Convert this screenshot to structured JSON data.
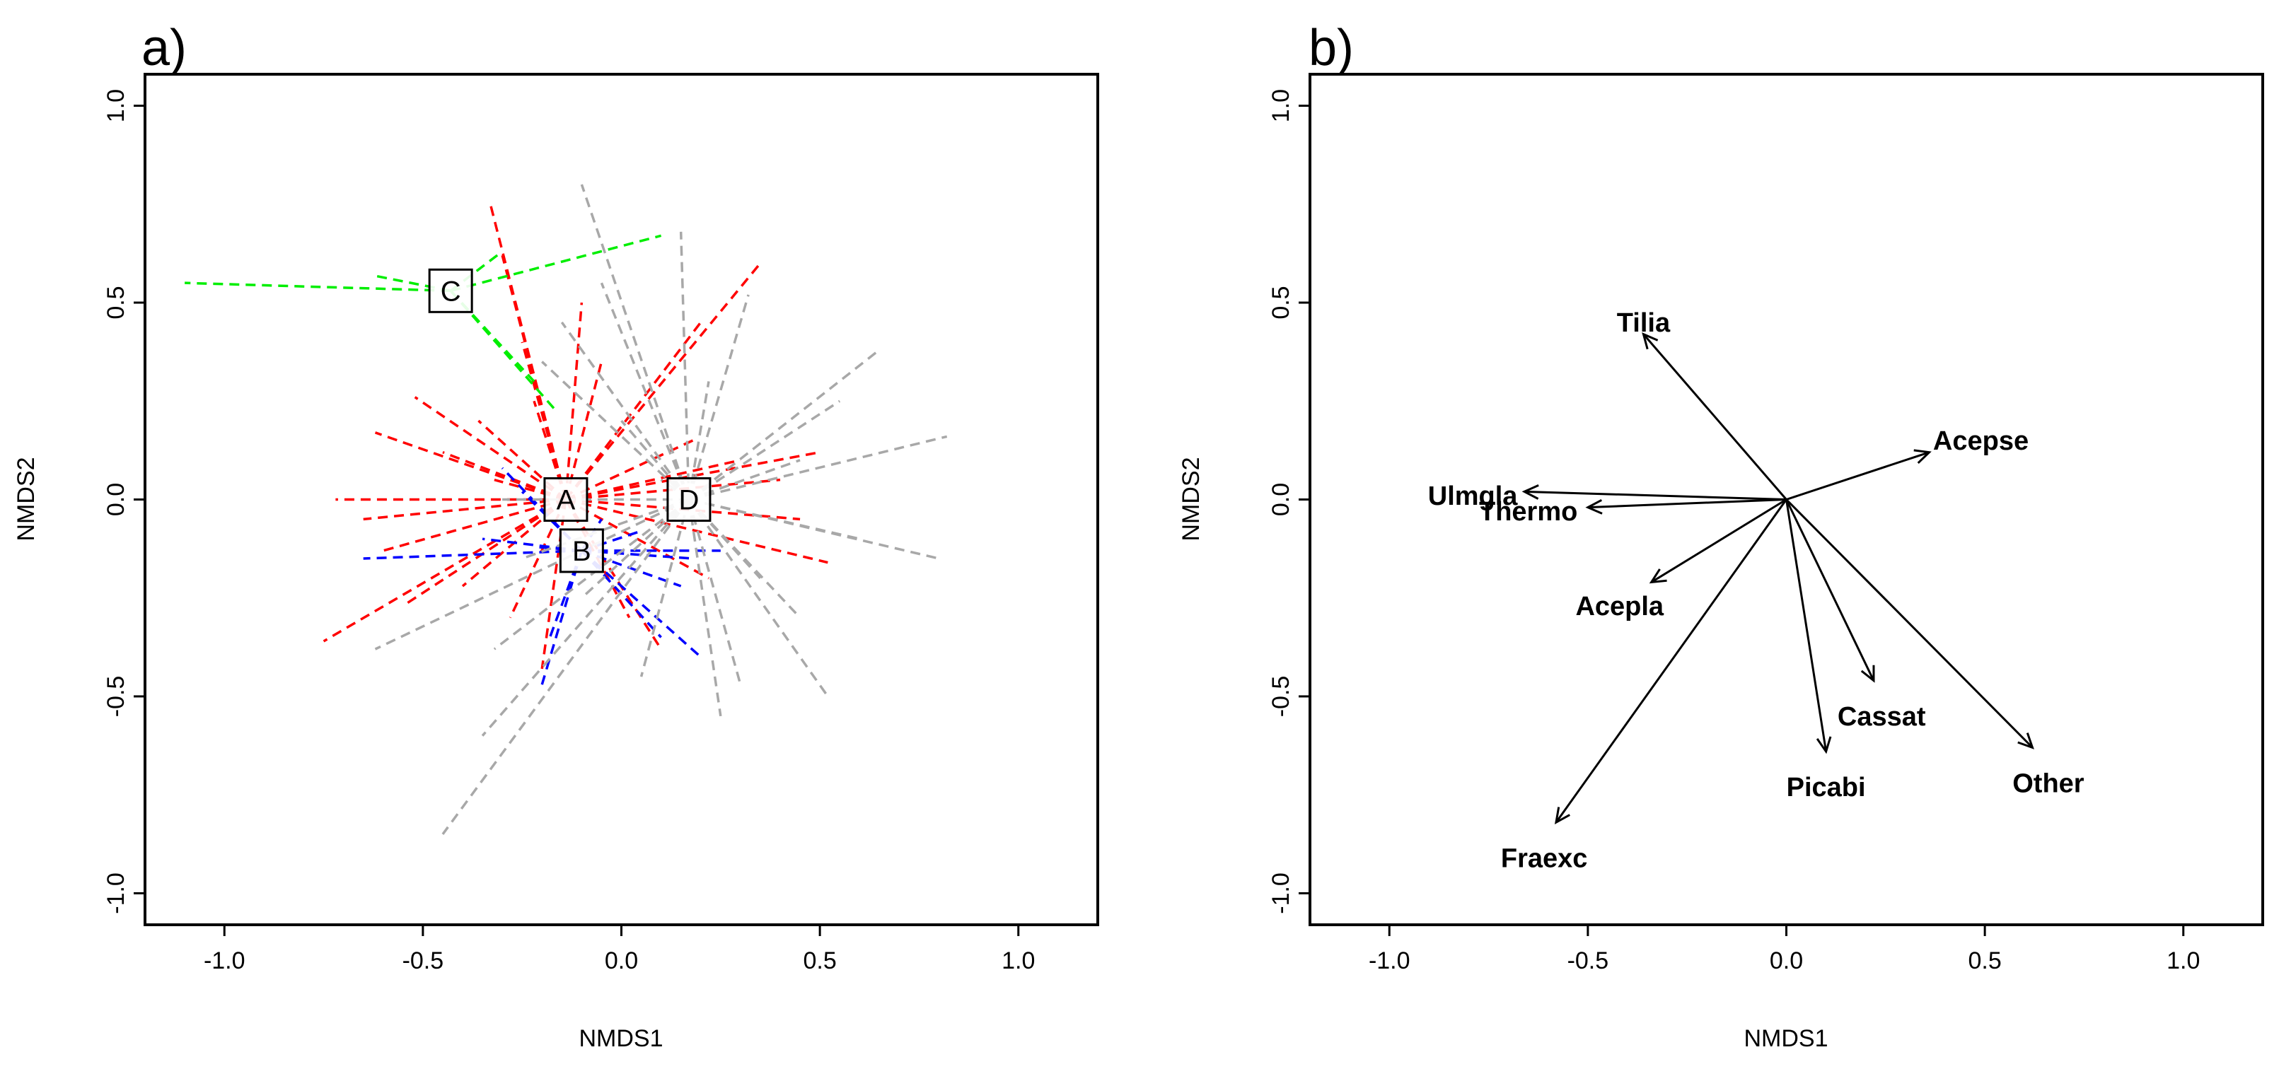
{
  "chart_data": [
    {
      "panel": "a)",
      "type": "scatter",
      "xlabel": "NMDS1",
      "ylabel": "NMDS2",
      "xlim": [
        -1.2,
        1.2
      ],
      "ylim": [
        -1.08,
        1.08
      ],
      "xticks": [
        -1.0,
        -0.5,
        0.0,
        0.5,
        1.0
      ],
      "xtick_labels": [
        "-1.0",
        "-0.5",
        "0.0",
        "0.5",
        "1.0"
      ],
      "yticks": [
        -1.0,
        -0.5,
        0.0,
        0.5,
        1.0
      ],
      "ytick_labels": [
        "-1.0",
        "-0.5",
        "0.0",
        "0.5",
        "1.0"
      ],
      "groups": [
        {
          "label": "A",
          "color": "#ff0000",
          "centroid": [
            -0.14,
            0.0
          ],
          "spokes": [
            [
              -0.62,
              0.17
            ],
            [
              -0.72,
              0.0
            ],
            [
              -0.65,
              -0.05
            ],
            [
              -0.75,
              -0.36
            ],
            [
              -0.55,
              -0.27
            ],
            [
              -0.52,
              0.26
            ],
            [
              -0.45,
              0.12
            ],
            [
              -0.6,
              -0.13
            ],
            [
              -0.4,
              -0.22
            ],
            [
              -0.33,
              0.75
            ],
            [
              -0.3,
              0.62
            ],
            [
              -0.25,
              0.4
            ],
            [
              -0.28,
              -0.3
            ],
            [
              -0.2,
              -0.43
            ],
            [
              -0.1,
              0.5
            ],
            [
              -0.05,
              0.35
            ],
            [
              0.02,
              -0.3
            ],
            [
              0.1,
              -0.38
            ],
            [
              0.2,
              0.45
            ],
            [
              0.22,
              -0.2
            ],
            [
              0.35,
              0.6
            ],
            [
              0.3,
              0.1
            ],
            [
              0.4,
              0.05
            ],
            [
              0.5,
              0.12
            ],
            [
              0.52,
              -0.16
            ],
            [
              0.45,
              -0.05
            ],
            [
              0.18,
              0.15
            ],
            [
              -0.32,
              0.05
            ],
            [
              -0.36,
              0.2
            ],
            [
              -0.22,
              0.25
            ]
          ]
        },
        {
          "label": "B",
          "color": "#0000ff",
          "centroid": [
            -0.1,
            -0.13
          ],
          "spokes": [
            [
              -0.65,
              -0.15
            ],
            [
              -0.3,
              0.08
            ],
            [
              -0.35,
              -0.1
            ],
            [
              -0.25,
              0.02
            ],
            [
              -0.2,
              -0.47
            ],
            [
              -0.18,
              -0.35
            ],
            [
              0.1,
              -0.35
            ],
            [
              0.2,
              -0.4
            ],
            [
              0.15,
              -0.22
            ],
            [
              0.05,
              -0.08
            ],
            [
              0.25,
              -0.13
            ],
            [
              0.18,
              -0.15
            ],
            [
              -0.05,
              -0.05
            ],
            [
              -0.22,
              -0.12
            ]
          ]
        },
        {
          "label": "C",
          "color": "#00ee00",
          "centroid": [
            -0.43,
            0.53
          ],
          "spokes": [
            [
              -1.1,
              0.55
            ],
            [
              -0.63,
              0.57
            ],
            [
              -0.3,
              0.63
            ],
            [
              0.1,
              0.67
            ],
            [
              -0.16,
              0.22
            ],
            [
              -0.22,
              0.3
            ]
          ]
        },
        {
          "label": "D",
          "color": "#a8a8a8",
          "centroid": [
            0.17,
            0.0
          ],
          "spokes": [
            [
              -0.1,
              0.8
            ],
            [
              0.15,
              0.68
            ],
            [
              0.32,
              0.52
            ],
            [
              0.65,
              0.38
            ],
            [
              0.82,
              0.16
            ],
            [
              0.8,
              -0.15
            ],
            [
              0.52,
              -0.5
            ],
            [
              0.3,
              -0.47
            ],
            [
              -0.45,
              -0.85
            ],
            [
              -0.62,
              -0.38
            ],
            [
              -0.32,
              -0.38
            ],
            [
              -0.2,
              0.35
            ],
            [
              -0.05,
              0.55
            ],
            [
              0.05,
              -0.45
            ],
            [
              0.22,
              0.3
            ],
            [
              0.45,
              0.1
            ],
            [
              0.6,
              -0.1
            ],
            [
              0.45,
              -0.3
            ],
            [
              -0.3,
              0.0
            ],
            [
              -0.25,
              -0.15
            ],
            [
              0.0,
              0.2
            ],
            [
              0.1,
              0.05
            ],
            [
              -0.1,
              -0.25
            ],
            [
              0.35,
              -0.2
            ],
            [
              0.55,
              0.25
            ],
            [
              -0.15,
              0.45
            ],
            [
              0.25,
              -0.55
            ],
            [
              -0.35,
              -0.6
            ]
          ]
        }
      ]
    },
    {
      "panel": "b)",
      "type": "biplot",
      "xlabel": "NMDS1",
      "ylabel": "NMDS2",
      "xlim": [
        -1.2,
        1.2
      ],
      "ylim": [
        -1.08,
        1.08
      ],
      "xticks": [
        -1.0,
        -0.5,
        0.0,
        0.5,
        1.0
      ],
      "xtick_labels": [
        "-1.0",
        "-0.5",
        "0.0",
        "0.5",
        "1.0"
      ],
      "yticks": [
        -1.0,
        -0.5,
        0.0,
        0.5,
        1.0
      ],
      "ytick_labels": [
        "-1.0",
        "-0.5",
        "0.0",
        "0.5",
        "1.0"
      ],
      "vectors": [
        {
          "label": "Tilia",
          "end": [
            -0.36,
            0.42
          ],
          "label_pos": [
            -0.36,
            0.45
          ]
        },
        {
          "label": "Acepse",
          "end": [
            0.36,
            0.12
          ],
          "label_pos": [
            0.49,
            0.15
          ]
        },
        {
          "label": "Ulmgla",
          "end": [
            -0.66,
            0.02
          ],
          "label_pos": [
            -0.79,
            0.01
          ]
        },
        {
          "label": "Thermo",
          "end": [
            -0.5,
            -0.02
          ],
          "label_pos": [
            -0.65,
            -0.03
          ]
        },
        {
          "label": "Acepla",
          "end": [
            -0.34,
            -0.21
          ],
          "label_pos": [
            -0.42,
            -0.27
          ]
        },
        {
          "label": "Cassat",
          "end": [
            0.22,
            -0.46
          ],
          "label_pos": [
            0.24,
            -0.55
          ]
        },
        {
          "label": "Picabi",
          "end": [
            0.1,
            -0.64
          ],
          "label_pos": [
            0.1,
            -0.73
          ]
        },
        {
          "label": "Other",
          "end": [
            0.62,
            -0.63
          ],
          "label_pos": [
            0.66,
            -0.72
          ]
        },
        {
          "label": "Fraexc",
          "end": [
            -0.58,
            -0.82
          ],
          "label_pos": [
            -0.61,
            -0.91
          ]
        }
      ]
    }
  ]
}
